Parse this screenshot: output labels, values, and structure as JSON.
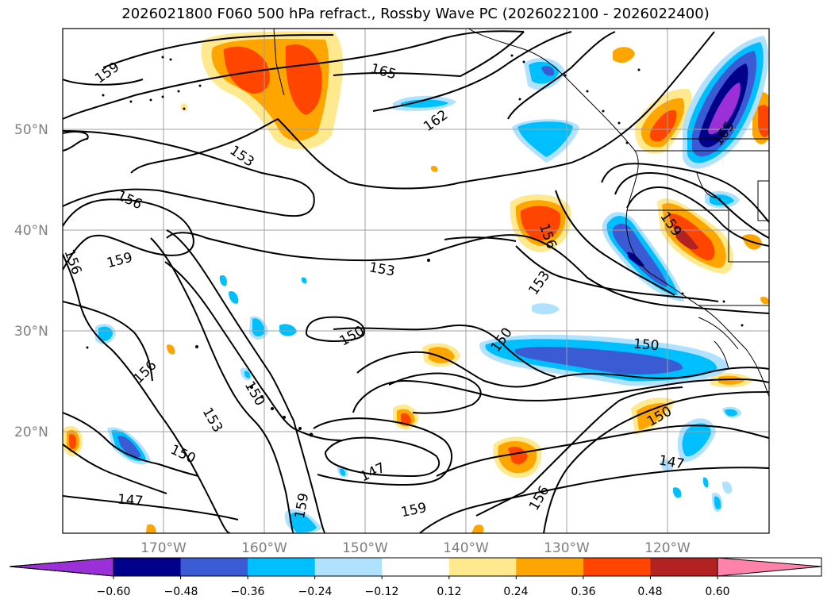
{
  "title": "2026021800 F060 500 hPa refract., Rossby Wave PC (2026022100 - 2026022400)",
  "map": {
    "lat_labels": [
      "50°N",
      "40°N",
      "30°N",
      "20°N"
    ],
    "lon_labels": [
      "170°W",
      "160°W",
      "150°W",
      "140°W",
      "130°W",
      "120°W"
    ],
    "contour_labels": [
      "159",
      "165",
      "162",
      "165",
      "153",
      "156",
      "159",
      "156",
      "153",
      "156",
      "153",
      "159",
      "150",
      "150",
      "150",
      "156",
      "150",
      "153",
      "150",
      "147",
      "147",
      "159",
      "156",
      "159",
      "150",
      "147"
    ]
  },
  "colorbar": {
    "tick_labels": [
      "−0.60",
      "−0.48",
      "−0.36",
      "−0.24",
      "−0.12",
      "0.12",
      "0.24",
      "0.36",
      "0.48",
      "0.60"
    ],
    "colors": [
      "#9b30d9",
      "#00008b",
      "#3a5bd3",
      "#00bfff",
      "#b0e2ff",
      "#ffffff",
      "#ffe98f",
      "#ffa500",
      "#ff4500",
      "#b22222",
      "#ff82ab",
      "#ff82ab"
    ]
  },
  "colors": {
    "land_outline": "#000000",
    "grid": "#a0a0a0"
  }
}
